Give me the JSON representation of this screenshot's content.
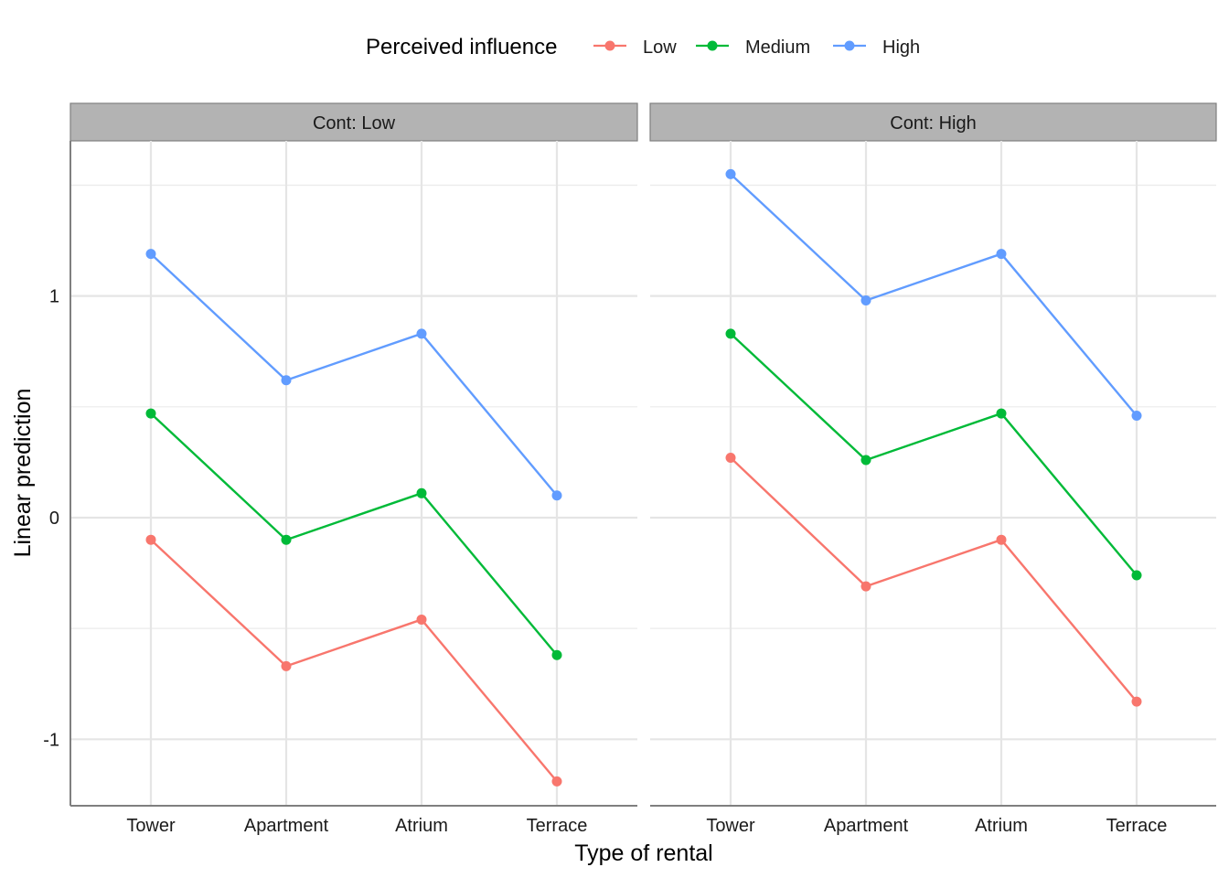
{
  "chart_data": {
    "type": "line",
    "xlabel": "Type of rental",
    "ylabel": "Linear prediction",
    "categories": [
      "Tower",
      "Apartment",
      "Atrium",
      "Terrace"
    ],
    "ylim": [
      -1.3,
      1.7
    ],
    "yticks": [
      -1,
      0,
      1
    ],
    "ytick_labels": [
      "-1",
      "0",
      "1"
    ],
    "grid": true,
    "legend": {
      "title": "Perceived influence",
      "position": "top"
    },
    "facets": [
      {
        "label": "Cont: Low",
        "series": [
          {
            "name": "Low",
            "values": [
              -0.1,
              -0.67,
              -0.46,
              -1.19
            ]
          },
          {
            "name": "Medium",
            "values": [
              0.47,
              -0.1,
              0.11,
              -0.62
            ]
          },
          {
            "name": "High",
            "values": [
              1.19,
              0.62,
              0.83,
              0.1
            ]
          }
        ]
      },
      {
        "label": "Cont: High",
        "series": [
          {
            "name": "Low",
            "values": [
              0.27,
              -0.31,
              -0.1,
              -0.83
            ]
          },
          {
            "name": "Medium",
            "values": [
              0.83,
              0.26,
              0.47,
              -0.26
            ]
          },
          {
            "name": "High",
            "values": [
              1.55,
              0.98,
              1.19,
              0.46
            ]
          }
        ]
      }
    ],
    "colors": {
      "Low": "#F8766D",
      "Medium": "#00BA38",
      "High": "#619CFF"
    }
  }
}
